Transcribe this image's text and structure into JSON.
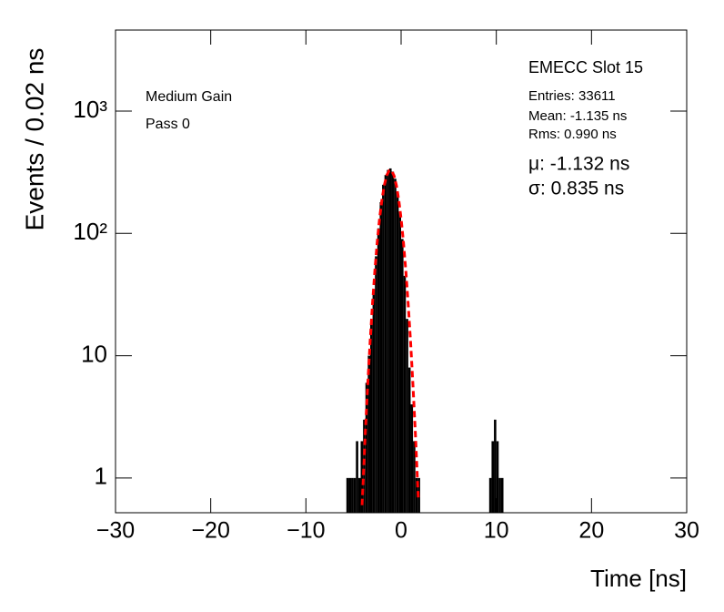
{
  "chart_data": {
    "type": "histogram",
    "x_label": "Time [ns]",
    "y_label": "Events / 0.02 ns",
    "log_y": true,
    "color": "#000000",
    "xlim": [
      -30,
      30
    ],
    "xticks": [
      {
        "value": -30,
        "label": "−30"
      },
      {
        "value": -20,
        "label": "−20"
      },
      {
        "value": -10,
        "label": "−10"
      },
      0,
      10,
      20,
      30
    ],
    "ylim": [
      0.52,
      4600
    ],
    "yticks": [
      1,
      10,
      {
        "value": 100,
        "label": "10²"
      },
      {
        "value": 1000,
        "label": "10³"
      }
    ],
    "bins": [
      -6,
      -5.75,
      -5.5,
      -5.25,
      -5,
      -4.75,
      -4.5,
      -4.25,
      -4,
      -3.75,
      -3.5,
      -3.25,
      -3,
      -2.75,
      -2.5,
      -2.25,
      -2,
      -1.75,
      -1.5,
      -1.25,
      -1,
      -0.75,
      -0.5,
      -0.25,
      0,
      0.25,
      0.5,
      0.75,
      1,
      1.25,
      1.5,
      1.75,
      2,
      2.25,
      2.5,
      2.75,
      3,
      3.25,
      3.5,
      3.75,
      4,
      4.25,
      4.5,
      4.75,
      5,
      5.25,
      5.5,
      5.75,
      6,
      6.25,
      6.5,
      6.75,
      7,
      7.25,
      7.5,
      7.75,
      8,
      8.25,
      8.5,
      8.75,
      9,
      9.25,
      9.5,
      9.75,
      10,
      10.25,
      10.5,
      10.75,
      11,
      11.25
    ],
    "counts": [
      0,
      1,
      1,
      1,
      1,
      2,
      1,
      2,
      3,
      6,
      10,
      18,
      35,
      65,
      110,
      180,
      250,
      300,
      330,
      340,
      320,
      280,
      220,
      150,
      90,
      45,
      20,
      8,
      4,
      2,
      1,
      1,
      0,
      0,
      0,
      0,
      0,
      0,
      0,
      0,
      0,
      0,
      0,
      0,
      0,
      0,
      0,
      0,
      0,
      0,
      0,
      0,
      0,
      0,
      0,
      0,
      0,
      0,
      0,
      0,
      0,
      1,
      2,
      3,
      2,
      1,
      1,
      0,
      0
    ],
    "fit": {
      "color": "#ff0000",
      "x": [
        -4.1,
        -3.75,
        -3.5,
        -3.25,
        -3,
        -2.75,
        -2.5,
        -2.25,
        -2,
        -1.75,
        -1.5,
        -1.25,
        -1.132,
        -1,
        -0.75,
        -0.5,
        -0.25,
        0,
        0.25,
        0.5,
        0.75,
        1,
        1.25,
        1.5,
        1.8
      ],
      "values": [
        0.6,
        2.42,
        5.92,
        13.2,
        27.0,
        50.5,
        86.2,
        134.7,
        192.3,
        250.9,
        299.5,
        326.7,
        330,
        325.9,
        297.2,
        247.9,
        188.9,
        131.7,
        83.9,
        48.9,
        26.0,
        12.7,
        5.64,
        2.3,
        0.69
      ]
    },
    "annotations": {
      "title": "EMECC Slot 15",
      "entries": "Entries: 33611",
      "mean": "Mean: -1.135 ns",
      "rms": "Rms: 0.990 ns",
      "mu": "μ: -1.132 ns",
      "sigma": "σ: 0.835 ns",
      "gain": "Medium Gain",
      "pass": "Pass 0"
    }
  }
}
